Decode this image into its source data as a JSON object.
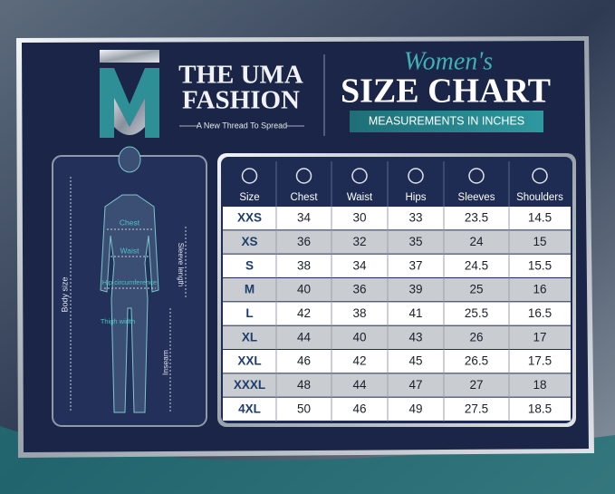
{
  "header": {
    "brand": "THE UMA FASHION",
    "brand_lines": [
      "THE UMA",
      "FASHION"
    ],
    "tagline": "A New Thread To Spread",
    "script_title": "Women's",
    "title": "SIZE CHART",
    "subtitle": "MEASUREMENTS IN INCHES"
  },
  "figure": {
    "labels": {
      "chest": "Chest",
      "waist": "Waist",
      "hip": "Hip circumference",
      "thigh": "Thigh width",
      "body": "Body size",
      "sleeve": "Sleeve length",
      "inseam": "Inseam"
    }
  },
  "table": {
    "columns": [
      "Size",
      "Chest",
      "Waist",
      "Hips",
      "Sleeves",
      "Shoulders"
    ],
    "rows": [
      [
        "XXS",
        34,
        30,
        33,
        23.5,
        14.5
      ],
      [
        "XS",
        36,
        32,
        35,
        24,
        15
      ],
      [
        "S",
        38,
        34,
        37,
        24.5,
        15.5
      ],
      [
        "M",
        40,
        36,
        39,
        25,
        16
      ],
      [
        "L",
        42,
        38,
        41,
        25.5,
        16.5
      ],
      [
        "XL",
        44,
        40,
        43,
        26,
        17
      ],
      [
        "XXL",
        46,
        42,
        45,
        26.5,
        17.5
      ],
      [
        "XXXL",
        48,
        44,
        47,
        27,
        18
      ],
      [
        "4XL",
        50,
        46,
        49,
        27.5,
        18.5
      ]
    ]
  }
}
